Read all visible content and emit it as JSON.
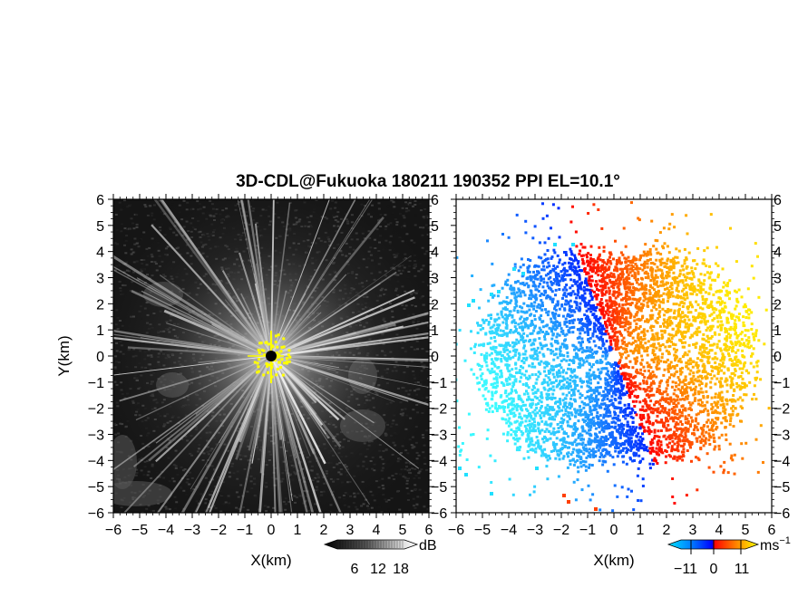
{
  "title": "3D-CDL@Fukuoka 180211 190352 PPI EL=10.1°",
  "chart_data": [
    {
      "type": "heatmap",
      "xlabel": "X(km)",
      "ylabel": "Y(km)",
      "xlim": [
        -6,
        6
      ],
      "ylim": [
        -6,
        6
      ],
      "x_ticks": [
        "−6",
        "−5",
        "−4",
        "−3",
        "−2",
        "−1",
        "0",
        "1",
        "2",
        "3",
        "4",
        "5",
        "6"
      ],
      "y_ticks": [
        "6",
        "5",
        "4",
        "3",
        "2",
        "1",
        "0",
        "−1",
        "−2",
        "−3",
        "−4",
        "−5",
        "−6"
      ],
      "colorbar": {
        "unit": "dB",
        "ticks": [
          "6",
          "12",
          "18"
        ],
        "colors": [
          "#000000",
          "#404040",
          "#808080",
          "#c0c0c0",
          "#ffffff",
          "#ffff00"
        ]
      },
      "field": "SNR radial spokes, bright near centre, yellow clutter at radar origin"
    },
    {
      "type": "heatmap",
      "xlabel": "X(km)",
      "ylabel": "",
      "xlim": [
        -6,
        6
      ],
      "ylim": [
        -6,
        6
      ],
      "x_ticks": [
        "−6",
        "−5",
        "−4",
        "−3",
        "−2",
        "−1",
        "0",
        "1",
        "2",
        "3",
        "4",
        "5",
        "6"
      ],
      "y_ticks": [
        "6",
        "5",
        "4",
        "3",
        "2",
        "1",
        "0",
        "−1",
        "−2",
        "−3",
        "−4",
        "−5",
        "−6"
      ],
      "colorbar": {
        "unit": "ms",
        "unit_exp": "−1",
        "ticks": [
          "−11",
          "0",
          "11"
        ],
        "colors": [
          "#0000ff",
          "#00a0ff",
          "#00ffff",
          "#ff0000",
          "#ff8000",
          "#ffff00"
        ]
      },
      "field": "Doppler velocity: negative (blue/cyan) to the west, positive (red/yellow) to the east"
    }
  ]
}
